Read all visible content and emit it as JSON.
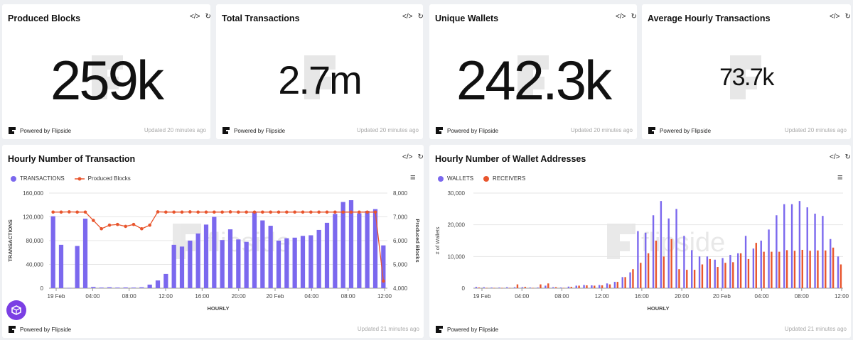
{
  "kpis": [
    {
      "title": "Produced Blocks",
      "value": "259k",
      "footer": "Powered by Flipside",
      "updated": "Updated 20 minutes ago"
    },
    {
      "title": "Total Transactions",
      "value": "2.7m",
      "footer": "Powered by Flipside",
      "updated": "Updated 20 minutes ago"
    },
    {
      "title": "Unique Wallets",
      "value": "242.3k",
      "footer": "Powered by Flipside",
      "updated": "Updated 20 minutes ago"
    },
    {
      "title": "Average Hourly Transactions",
      "value": "73.7k",
      "footer": "Powered by Flipside",
      "updated": "Updated 20 minutes ago"
    }
  ],
  "icons": {
    "embed": "</>",
    "refresh": "↻",
    "menu": "≡"
  },
  "colors": {
    "purple": "#7b68ee",
    "orange": "#e8552d",
    "accent": "#7b3fe4"
  },
  "charts": {
    "tx": {
      "title": "Hourly Number of Transaction",
      "legend": [
        "TRANSACTIONS",
        "Produced Blocks"
      ],
      "footer": "Powered by Flipside",
      "updated": "Updated 21 minutes ago",
      "watermark": "flipside"
    },
    "wallet": {
      "title": "Hourly Number of Wallet Addresses",
      "legend": [
        "WALLETS",
        "RECEIVERS"
      ],
      "footer": "Powered by Flipside",
      "updated": "Updated 21 minutes ago",
      "watermark": "flipside"
    }
  },
  "chart_data": [
    {
      "type": "bar",
      "title": "Hourly Number of Transaction",
      "xlabel": "HOURLY",
      "ylabel": "TRANSACTIONS",
      "y2label": "Produced Blocks",
      "ylim": [
        0,
        160000
      ],
      "y2lim": [
        4000,
        8000
      ],
      "yticks": [
        "0",
        "40,000",
        "80,000",
        "120,000",
        "160,000"
      ],
      "y2ticks": [
        "4,000",
        "5,000",
        "6,000",
        "7,000",
        "8,000"
      ],
      "xticks": [
        "19 Feb",
        "04:00",
        "08:00",
        "12:00",
        "16:00",
        "20:00",
        "20 Feb",
        "04:00",
        "08:00",
        "12:00"
      ],
      "series": [
        {
          "name": "TRANSACTIONS",
          "type": "bar",
          "values": [
            121000,
            73000,
            500,
            71000,
            117000,
            2000,
            1000,
            1500,
            1000,
            1200,
            1000,
            1500,
            6000,
            13000,
            24000,
            73000,
            70000,
            80000,
            92000,
            107000,
            120000,
            81000,
            99000,
            82000,
            78000,
            128000,
            114000,
            105000,
            80000,
            84000,
            85000,
            88000,
            89000,
            98000,
            110000,
            125000,
            145000,
            148000,
            126000,
            130000,
            133000,
            72000
          ]
        },
        {
          "name": "Produced Blocks",
          "type": "line",
          "values": [
            7200,
            7200,
            7210,
            7200,
            7200,
            6850,
            6500,
            6650,
            6680,
            6600,
            6680,
            6500,
            6650,
            7210,
            7200,
            7200,
            7200,
            7210,
            7200,
            7200,
            7200,
            7200,
            7210,
            7200,
            7200,
            7200,
            7200,
            7200,
            7200,
            7200,
            7200,
            7200,
            7200,
            7200,
            7200,
            7200,
            7200,
            7200,
            7200,
            7200,
            7200,
            4300
          ]
        }
      ]
    },
    {
      "type": "bar",
      "title": "Hourly Number of Wallet Addresses",
      "xlabel": "HOURLY",
      "ylabel": "# of Wallets",
      "ylim": [
        0,
        30000
      ],
      "yticks": [
        "0",
        "10,000",
        "20,000",
        "30,000"
      ],
      "xticks": [
        "19 Feb",
        "04:00",
        "08:00",
        "12:00",
        "16:00",
        "20:00",
        "20 Feb",
        "04:00",
        "08:00",
        "12:00"
      ],
      "series": [
        {
          "name": "WALLETS",
          "values": [
            400,
            300,
            200,
            200,
            300,
            300,
            300,
            200,
            200,
            800,
            300,
            200,
            500,
            800,
            1000,
            900,
            1000,
            1500,
            2000,
            3500,
            5000,
            18000,
            17500,
            23000,
            27500,
            22000,
            25000,
            16500,
            12000,
            10000,
            10000,
            9000,
            9500,
            10500,
            11000,
            16500,
            12500,
            15000,
            18500,
            23000,
            26500,
            26500,
            27500,
            25500,
            23500,
            22800,
            15500,
            10000
          ]
        },
        {
          "name": "RECEIVERS",
          "values": [
            200,
            100,
            100,
            100,
            100,
            1200,
            400,
            100,
            1200,
            1500,
            300,
            100,
            400,
            800,
            900,
            800,
            900,
            1200,
            2000,
            3500,
            6000,
            8000,
            11000,
            15000,
            10000,
            15500,
            6000,
            5800,
            5800,
            7500,
            9200,
            6700,
            8000,
            8200,
            11000,
            9200,
            14300,
            11500,
            11500,
            11500,
            12000,
            11800,
            12100,
            11800,
            11900,
            11900,
            12800,
            7500
          ]
        }
      ]
    }
  ]
}
